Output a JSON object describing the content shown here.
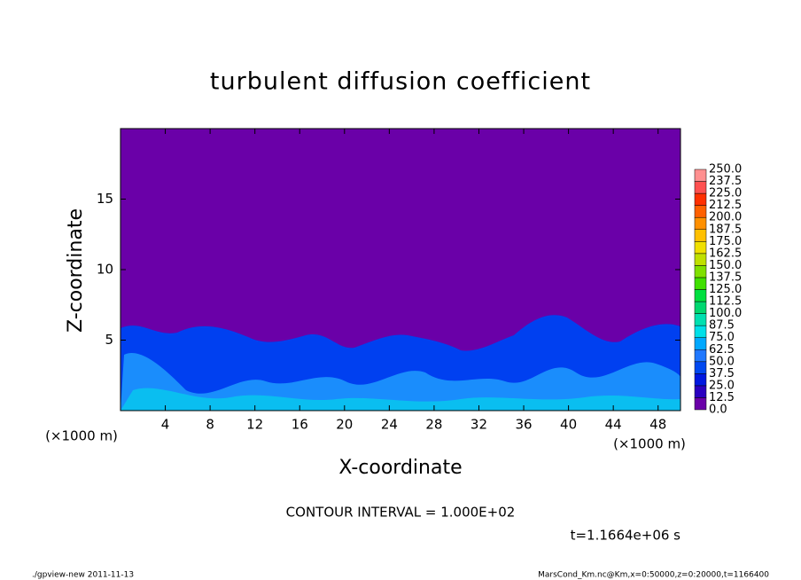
{
  "chart_data": {
    "type": "contour",
    "title": "turbulent diffusion coefficient",
    "x_label": "X-coordinate",
    "y_label": "Z-coordinate",
    "x_unit": "(×1000 m)",
    "y_unit": "(×1000 m)",
    "contour_note": "CONTOUR INTERVAL = 1.000E+02",
    "time_note": "t=1.1664e+06 s",
    "footer_left": "./gpview-new  2011-11-13",
    "footer_right": "MarsCond_Km.nc@Km,x=0:50000,z=0:20000,t=1166400",
    "xlim": [
      0,
      50
    ],
    "ylim": [
      0,
      20
    ],
    "xticks": [
      4,
      8,
      12,
      16,
      20,
      24,
      28,
      32,
      36,
      40,
      44,
      48
    ],
    "yticks": [
      5,
      10,
      15
    ],
    "levels": [
      {
        "value": 0,
        "label": "0.0"
      },
      12.5,
      {
        "value": 25,
        "label": "25.0"
      },
      37.5,
      {
        "value": 50,
        "label": "50.0"
      },
      62.5,
      {
        "value": 75,
        "label": "75.0"
      },
      87.5,
      {
        "value": 100,
        "label": "100.0"
      },
      112.5,
      {
        "value": 125,
        "label": "125.0"
      },
      137.5,
      {
        "value": 150,
        "label": "150.0"
      },
      162.5,
      {
        "value": 175,
        "label": "175.0"
      },
      187.5,
      {
        "value": 200,
        "label": "200.0"
      },
      212.5,
      {
        "value": 225,
        "label": "225.0"
      },
      237.5,
      {
        "value": 250,
        "label": "250.0"
      }
    ],
    "colors": [
      "#6a00a8",
      "#2a00c0",
      "#0018e0",
      "#0048f0",
      "#2078ff",
      "#00a8ff",
      "#00e0e8",
      "#00e0b0",
      "#00d870",
      "#00e040",
      "#40e000",
      "#80e000",
      "#c0e000",
      "#f0e000",
      "#ffc000",
      "#ff9000",
      "#ff6000",
      "#ff3000",
      "#ff5050",
      "#ff9090"
    ]
  }
}
